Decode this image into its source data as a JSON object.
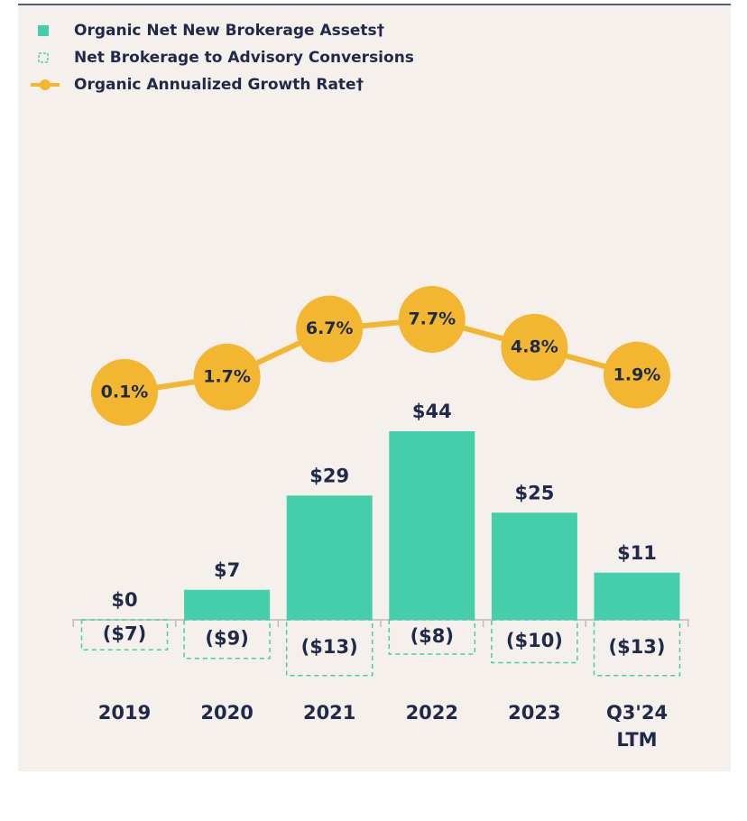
{
  "chart_data": {
    "type": "bar",
    "categories": [
      "2019",
      "2020",
      "2021",
      "2022",
      "2023",
      "Q3'24 LTM"
    ],
    "series": [
      {
        "name": "Organic Net New Brokerage Assets†",
        "color": "#44cfaa",
        "values": [
          0,
          7,
          29,
          44,
          25,
          11
        ],
        "value_labels": [
          "$0",
          "$7",
          "$29",
          "$44",
          "$25",
          "$11"
        ]
      },
      {
        "name": "Net Brokerage to Advisory Conversions",
        "color": "#44cfaa",
        "style": "dashed",
        "values": [
          -7,
          -9,
          -13,
          -8,
          -10,
          -13
        ],
        "value_labels": [
          "($7)",
          "($9)",
          "($13)",
          "($8)",
          "($10)",
          "($13)"
        ]
      },
      {
        "name": "Organic Annualized Growth Rate†",
        "color": "#f2b630",
        "type": "line",
        "axis": "y2",
        "values": [
          0.1,
          1.7,
          6.7,
          7.7,
          4.8,
          1.9
        ],
        "value_labels": [
          "0.1%",
          "1.7%",
          "6.7%",
          "7.7%",
          "4.8%",
          "1.9%"
        ]
      }
    ]
  }
}
